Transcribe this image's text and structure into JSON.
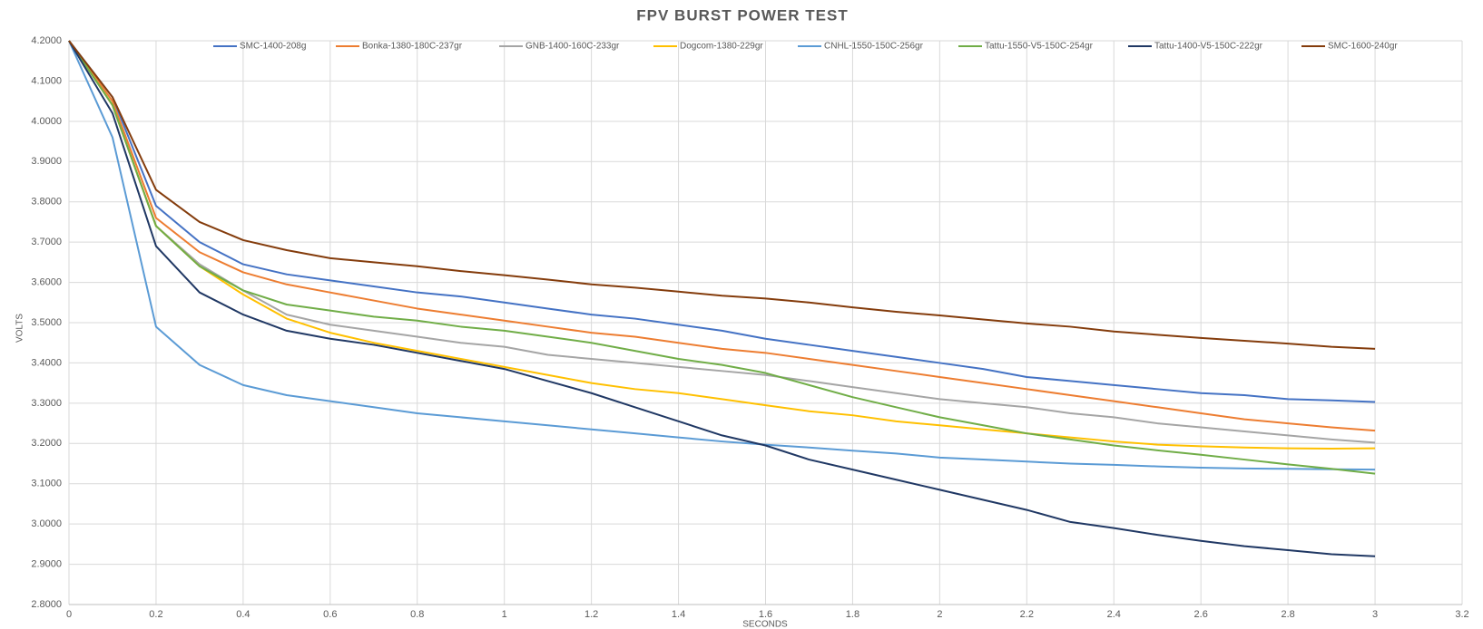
{
  "chart_data": {
    "type": "line",
    "title": "FPV BURST POWER TEST",
    "x_label": "SECONDS",
    "y_label": "VOLTS",
    "grid": true,
    "legend": "top",
    "x": [
      0,
      0.1,
      0.2,
      0.3,
      0.4,
      0.5,
      0.6,
      0.7,
      0.8,
      0.9,
      1,
      1.1,
      1.2,
      1.3,
      1.4,
      1.5,
      1.6,
      1.7,
      1.8,
      1.9,
      2,
      2.1,
      2.2,
      2.3,
      2.4,
      2.5,
      2.6,
      2.7,
      2.8,
      2.9,
      3
    ],
    "xlim": [
      0,
      3.2
    ],
    "xticks": [
      0,
      0.2,
      0.4,
      0.6,
      0.8,
      1,
      1.2,
      1.4,
      1.6,
      1.8,
      2,
      2.2,
      2.4,
      2.6,
      2.8,
      3,
      3.2
    ],
    "ylim": [
      2.8,
      4.2
    ],
    "yticks": [
      {
        "value": 2.8,
        "label": "2.8000"
      },
      {
        "value": 2.9,
        "label": "2.9000"
      },
      {
        "value": 3,
        "label": "3.0000"
      },
      {
        "value": 3.1,
        "label": "3.1000"
      },
      {
        "value": 3.2,
        "label": "3.2000"
      },
      {
        "value": 3.3,
        "label": "3.3000"
      },
      {
        "value": 3.4,
        "label": "3.4000"
      },
      {
        "value": 3.5,
        "label": "3.5000"
      },
      {
        "value": 3.6,
        "label": "3.6000"
      },
      {
        "value": 3.7,
        "label": "3.7000"
      },
      {
        "value": 3.8,
        "label": "3.8000"
      },
      {
        "value": 3.9,
        "label": "3.9000"
      },
      {
        "value": 4,
        "label": "4.0000"
      },
      {
        "value": 4.1,
        "label": "4.1000"
      },
      {
        "value": 4.2,
        "label": "4.2000"
      }
    ],
    "series": [
      {
        "name": "SMC-1400-208g",
        "color": "#4472c4",
        "values": [
          4.2,
          4.06,
          3.79,
          3.7,
          3.645,
          3.62,
          3.605,
          3.59,
          3.575,
          3.565,
          3.55,
          3.535,
          3.52,
          3.51,
          3.495,
          3.48,
          3.46,
          3.445,
          3.43,
          3.415,
          3.4,
          3.385,
          3.365,
          3.355,
          3.345,
          3.335,
          3.325,
          3.32,
          3.31,
          3.307,
          3.303
        ]
      },
      {
        "name": "Bonka-1380-180C-237gr",
        "color": "#ed7d31",
        "values": [
          4.2,
          4.05,
          3.76,
          3.675,
          3.625,
          3.595,
          3.575,
          3.555,
          3.535,
          3.52,
          3.505,
          3.49,
          3.475,
          3.465,
          3.45,
          3.435,
          3.425,
          3.41,
          3.395,
          3.38,
          3.365,
          3.35,
          3.335,
          3.32,
          3.305,
          3.29,
          3.275,
          3.26,
          3.25,
          3.24,
          3.232
        ]
      },
      {
        "name": "GNB-1400-160C-233gr",
        "color": "#a5a5a5",
        "values": [
          4.2,
          4.04,
          3.74,
          3.645,
          3.58,
          3.52,
          3.495,
          3.48,
          3.465,
          3.45,
          3.44,
          3.42,
          3.41,
          3.4,
          3.39,
          3.38,
          3.37,
          3.355,
          3.34,
          3.325,
          3.31,
          3.3,
          3.29,
          3.275,
          3.265,
          3.25,
          3.24,
          3.23,
          3.22,
          3.21,
          3.202
        ]
      },
      {
        "name": "Dogcom-1380-229gr",
        "color": "#ffc000",
        "values": [
          4.2,
          4.04,
          3.74,
          3.64,
          3.57,
          3.51,
          3.475,
          3.45,
          3.43,
          3.41,
          3.39,
          3.37,
          3.35,
          3.335,
          3.325,
          3.31,
          3.295,
          3.28,
          3.27,
          3.255,
          3.245,
          3.235,
          3.225,
          3.215,
          3.205,
          3.197,
          3.193,
          3.19,
          3.188,
          3.187,
          3.188
        ]
      },
      {
        "name": "CNHL-1550-150C-256gr",
        "color": "#5b9bd5",
        "values": [
          4.2,
          3.96,
          3.49,
          3.395,
          3.345,
          3.32,
          3.305,
          3.29,
          3.275,
          3.265,
          3.255,
          3.245,
          3.235,
          3.225,
          3.215,
          3.205,
          3.197,
          3.19,
          3.182,
          3.175,
          3.165,
          3.16,
          3.155,
          3.15,
          3.147,
          3.143,
          3.14,
          3.138,
          3.137,
          3.136,
          3.135
        ]
      },
      {
        "name": "Tattu-1550-V5-150C-254gr",
        "color": "#70ad47",
        "values": [
          4.2,
          4.04,
          3.74,
          3.64,
          3.58,
          3.545,
          3.53,
          3.515,
          3.505,
          3.49,
          3.48,
          3.465,
          3.45,
          3.43,
          3.41,
          3.395,
          3.375,
          3.345,
          3.315,
          3.29,
          3.265,
          3.245,
          3.225,
          3.21,
          3.195,
          3.183,
          3.172,
          3.16,
          3.148,
          3.137,
          3.125
        ]
      },
      {
        "name": "Tattu-1400-V5-150C-222gr",
        "color": "#203864",
        "values": [
          4.2,
          4.02,
          3.69,
          3.575,
          3.52,
          3.48,
          3.46,
          3.445,
          3.425,
          3.405,
          3.385,
          3.355,
          3.325,
          3.29,
          3.255,
          3.22,
          3.195,
          3.16,
          3.135,
          3.11,
          3.085,
          3.06,
          3.035,
          3.005,
          2.99,
          2.973,
          2.958,
          2.945,
          2.935,
          2.925,
          2.92
        ]
      },
      {
        "name": "SMC-1600-240gr",
        "color": "#843c0c",
        "values": [
          4.2,
          4.06,
          3.83,
          3.75,
          3.705,
          3.68,
          3.66,
          3.65,
          3.64,
          3.628,
          3.618,
          3.607,
          3.595,
          3.587,
          3.577,
          3.567,
          3.56,
          3.55,
          3.538,
          3.527,
          3.518,
          3.508,
          3.498,
          3.49,
          3.478,
          3.47,
          3.462,
          3.455,
          3.448,
          3.44,
          3.435
        ]
      }
    ]
  }
}
